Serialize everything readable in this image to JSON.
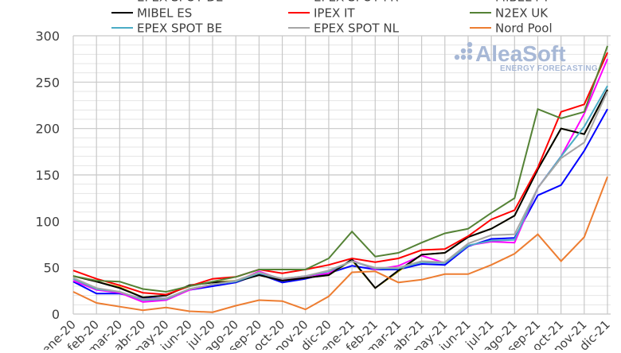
{
  "chart_data": {
    "type": "line",
    "title": "",
    "xlabel": "",
    "ylabel": "",
    "ylim": [
      0,
      300
    ],
    "yticks": [
      0,
      50,
      100,
      150,
      200,
      250,
      300
    ],
    "grid": true,
    "legend_position": "top",
    "watermark": {
      "main": "AleaSoft",
      "sub": "ENERGY FORECASTING"
    },
    "categories": [
      "ene-20",
      "feb-20",
      "mar-20",
      "abr-20",
      "may-20",
      "jun-20",
      "jul-20",
      "ago-20",
      "sep-20",
      "oct-20",
      "nov-20",
      "dic-20",
      "ene-21",
      "feb-21",
      "mar-21",
      "abr-21",
      "may-21",
      "jun-21",
      "jul-21",
      "ago-21",
      "sep-21",
      "oct-21",
      "nov-21",
      "dic-21"
    ],
    "series": [
      {
        "name": "EPEX SPOT DE",
        "color": "#0000ff",
        "values": [
          35,
          22,
          22,
          17,
          17,
          26,
          30,
          34,
          43,
          34,
          38,
          44,
          52,
          48,
          48,
          54,
          53,
          73,
          81,
          82,
          128,
          139,
          176,
          221
        ]
      },
      {
        "name": "EPEX SPOT FR",
        "color": "#ff00ff",
        "values": [
          36,
          26,
          23,
          13,
          15,
          26,
          32,
          35,
          46,
          37,
          41,
          44,
          58,
          48,
          52,
          63,
          55,
          74,
          78,
          77,
          136,
          170,
          216,
          275
        ]
      },
      {
        "name": "MIBEL PT",
        "color": "#b5a300",
        "values": [
          41,
          35,
          29,
          18,
          20,
          31,
          34,
          36,
          42,
          36,
          39,
          42,
          58,
          28,
          46,
          64,
          66,
          83,
          92,
          106,
          156,
          200,
          194,
          241
        ]
      },
      {
        "name": "MIBEL ES",
        "color": "#000000",
        "values": [
          41,
          35,
          28,
          18,
          20,
          31,
          34,
          35,
          42,
          36,
          39,
          42,
          59,
          28,
          47,
          64,
          66,
          83,
          92,
          106,
          156,
          200,
          194,
          242
        ]
      },
      {
        "name": "IPEX IT",
        "color": "#ff0000",
        "values": [
          47,
          38,
          31,
          23,
          21,
          30,
          38,
          40,
          48,
          44,
          48,
          53,
          60,
          56,
          60,
          69,
          70,
          84,
          102,
          112,
          158,
          218,
          226,
          282
        ]
      },
      {
        "name": "N2EX UK",
        "color": "#548235",
        "values": [
          41,
          36,
          35,
          27,
          24,
          30,
          35,
          40,
          48,
          48,
          48,
          60,
          89,
          62,
          66,
          77,
          87,
          92,
          109,
          125,
          221,
          211,
          218,
          289
        ]
      },
      {
        "name": "EPEX SPOT BE",
        "color": "#4bacc6",
        "values": [
          38,
          27,
          24,
          15,
          16,
          27,
          32,
          35,
          44,
          38,
          41,
          46,
          57,
          49,
          49,
          56,
          55,
          74,
          79,
          80,
          136,
          170,
          202,
          246
        ]
      },
      {
        "name": "EPEX SPOT NL",
        "color": "#a6a6a6",
        "values": [
          39,
          28,
          24,
          16,
          17,
          27,
          32,
          36,
          45,
          38,
          41,
          47,
          57,
          50,
          50,
          57,
          56,
          76,
          85,
          86,
          136,
          168,
          185,
          240
        ]
      },
      {
        "name": "Nord Pool",
        "color": "#ed7d31",
        "values": [
          24,
          12,
          8,
          4,
          7,
          3,
          2,
          9,
          15,
          14,
          5,
          19,
          45,
          46,
          34,
          37,
          43,
          43,
          53,
          65,
          86,
          57,
          83,
          148
        ]
      }
    ]
  }
}
